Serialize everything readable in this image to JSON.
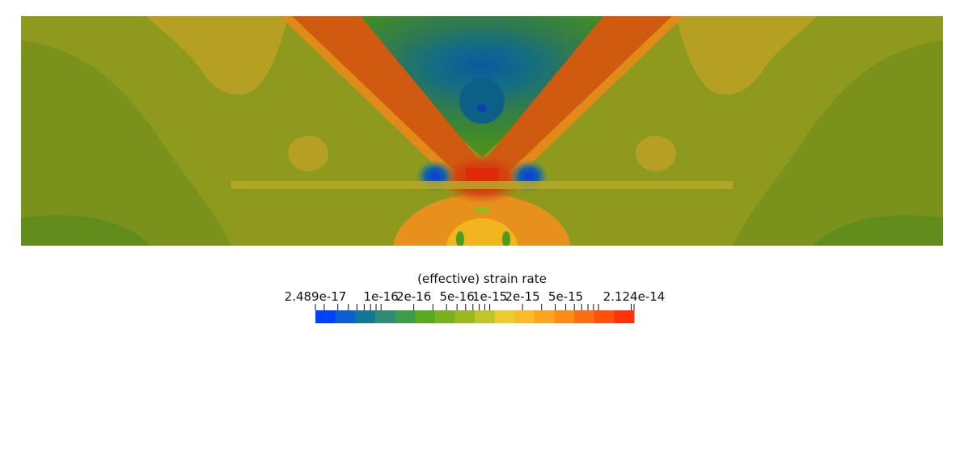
{
  "legend": {
    "title": "(effective) strain rate",
    "tick_labels": [
      "2.489e-17",
      "1e-16",
      "2e-16",
      "5e-16",
      "1e-15",
      "2e-15",
      "5e-15",
      "2.124e-14"
    ],
    "colormap": [
      "#0040ff",
      "#0a60d0",
      "#127898",
      "#2f8a78",
      "#3f9a4c",
      "#55aa22",
      "#7aaf1e",
      "#9cb820",
      "#c0c428",
      "#e9cc32",
      "#fbbb28",
      "#fba41e",
      "#fc8c16",
      "#fc6f10",
      "#fd510c",
      "#fe330a"
    ]
  },
  "colors": {
    "background": "#ffffff",
    "field_low": "#5f8c1a",
    "field_mid": "#a39b22",
    "field_high": "#d25a10",
    "peak": "#e02a08"
  }
}
